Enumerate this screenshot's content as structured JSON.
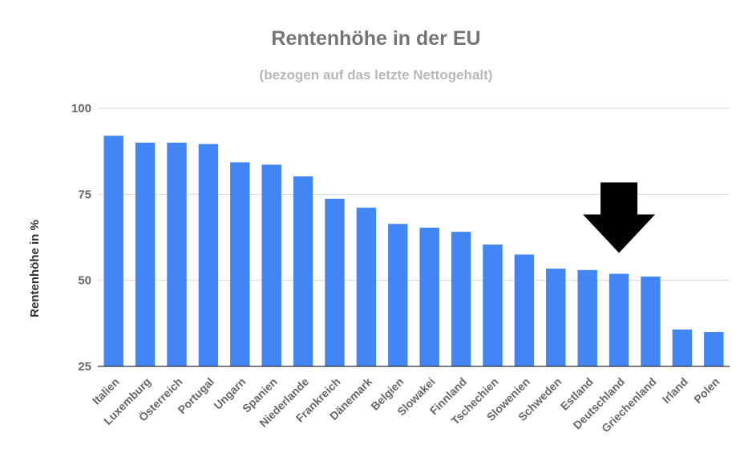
{
  "chart_data": {
    "type": "bar",
    "title": "Rentenhöhe in der EU",
    "subtitle": "(bezogen auf das letzte Nettogehalt)",
    "xlabel": "",
    "ylabel": "Rentenhöhe in %",
    "ylim": [
      25,
      100
    ],
    "yticks": [
      25,
      50,
      75,
      100
    ],
    "grid": true,
    "bar_color": "#4285f4",
    "categories": [
      "Italien",
      "Luxemburg",
      "Österreich",
      "Portugal",
      "Ungarn",
      "Spanien",
      "Niederlande",
      "Frankreich",
      "Dänemark",
      "Belgien",
      "Slowakei",
      "Finnland",
      "Tschechien",
      "Slowenien",
      "Schweden",
      "Estland",
      "Deutschland",
      "Griechenland",
      "Irland",
      "Polen"
    ],
    "values": [
      92,
      90,
      90,
      89.6,
      84.3,
      83.6,
      80.2,
      73.7,
      71.1,
      66.4,
      65.3,
      64.1,
      60.4,
      57.5,
      53.4,
      53.0,
      51.9,
      51.1,
      35.7,
      35.0
    ],
    "annotation": {
      "type": "arrow",
      "direction": "down",
      "target": "Deutschland",
      "color": "#000000"
    }
  }
}
